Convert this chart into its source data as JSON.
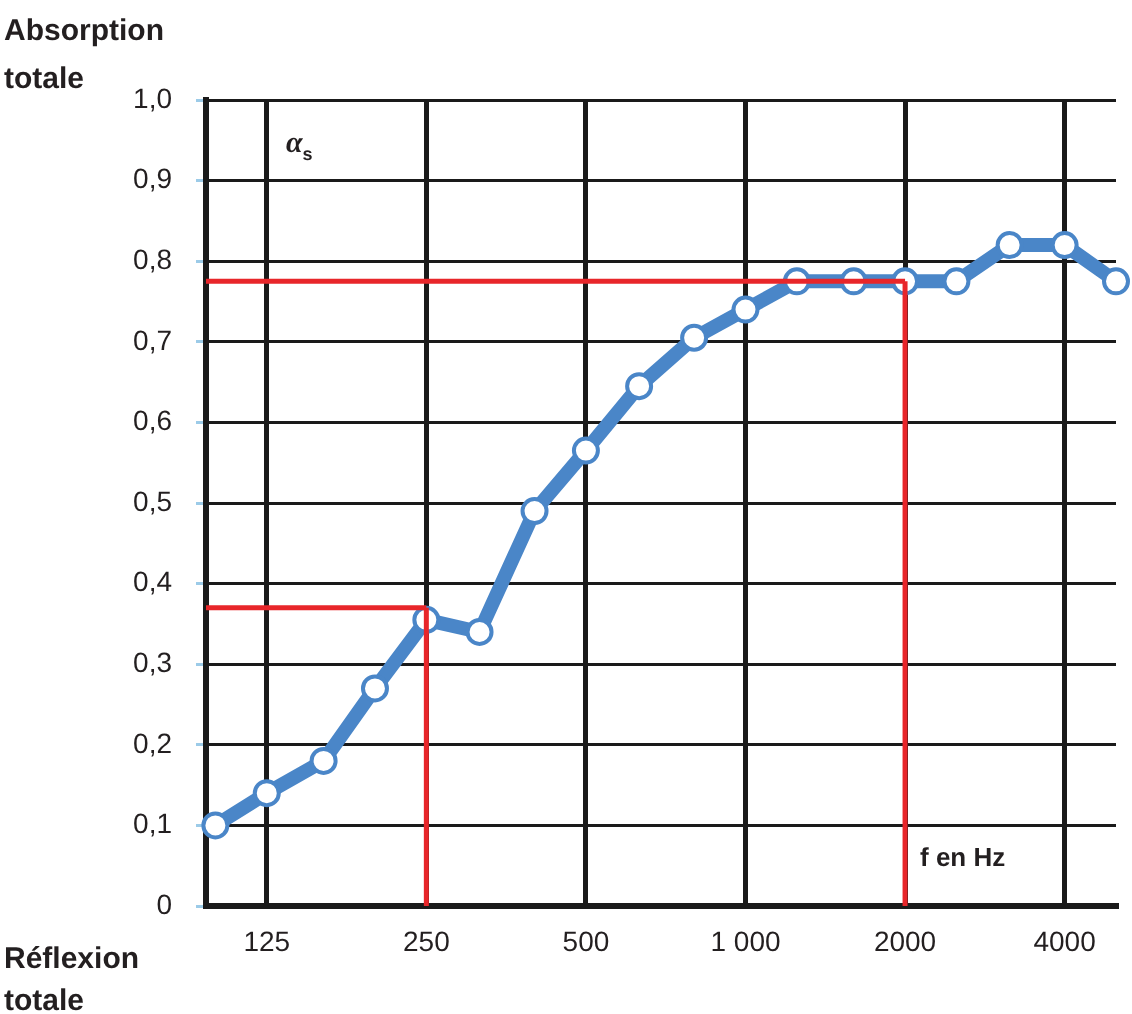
{
  "chart_data": {
    "type": "line",
    "ylabel": "Absorption totale",
    "xlabel": "f en Hz",
    "annotations": [
      "α$_{s}$",
      "Réflexion totale"
    ],
    "x": [
      100,
      125,
      160,
      200,
      250,
      315,
      400,
      500,
      630,
      800,
      1000,
      1250,
      1600,
      2000,
      2500,
      3150,
      4000,
      5000
    ],
    "series": [
      {
        "color": "#4a86c8",
        "values": [
          0.1,
          0.14,
          0.18,
          0.27,
          0.355,
          0.34,
          0.49,
          0.565,
          0.645,
          0.705,
          0.74,
          0.775,
          0.775,
          0.775,
          0.775,
          0.82,
          0.82,
          0.775
        ]
      }
    ],
    "log": "x",
    "xlim": [
      96,
      5000
    ],
    "xticks": [
      125,
      250,
      500,
      {
        "value": 1000,
        "label": "1 000"
      },
      2000,
      4000
    ],
    "ylim": [
      0,
      1
    ],
    "yticks": [
      {
        "value": 0,
        "label": "0"
      },
      {
        "value": 0.1,
        "label": "0,1"
      },
      {
        "value": 0.2,
        "label": "0,2"
      },
      {
        "value": 0.3,
        "label": "0,3"
      },
      {
        "value": 0.4,
        "label": "0,4"
      },
      {
        "value": 0.5,
        "label": "0,5"
      },
      {
        "value": 0.6,
        "label": "0,6"
      },
      {
        "value": 0.7,
        "label": "0,7"
      },
      {
        "value": 0.8,
        "label": "0,8"
      },
      {
        "value": 0.9,
        "label": "0,9"
      },
      {
        "value": 1,
        "label": "1,0"
      }
    ],
    "grid": true,
    "marker": "circle",
    "line_style": "solid",
    "legend": false,
    "ref_lines": [
      {
        "axis": "x",
        "value": 250,
        "label": null,
        "color": "#e8262a"
      },
      {
        "axis": "y",
        "value": 0.37,
        "label": null,
        "color": "#e8262a"
      },
      {
        "axis": "x",
        "value": 2000,
        "label": null,
        "color": "#e8262a"
      },
      {
        "axis": "y",
        "value": 0.775,
        "label": null,
        "color": "#e8262a"
      }
    ]
  }
}
